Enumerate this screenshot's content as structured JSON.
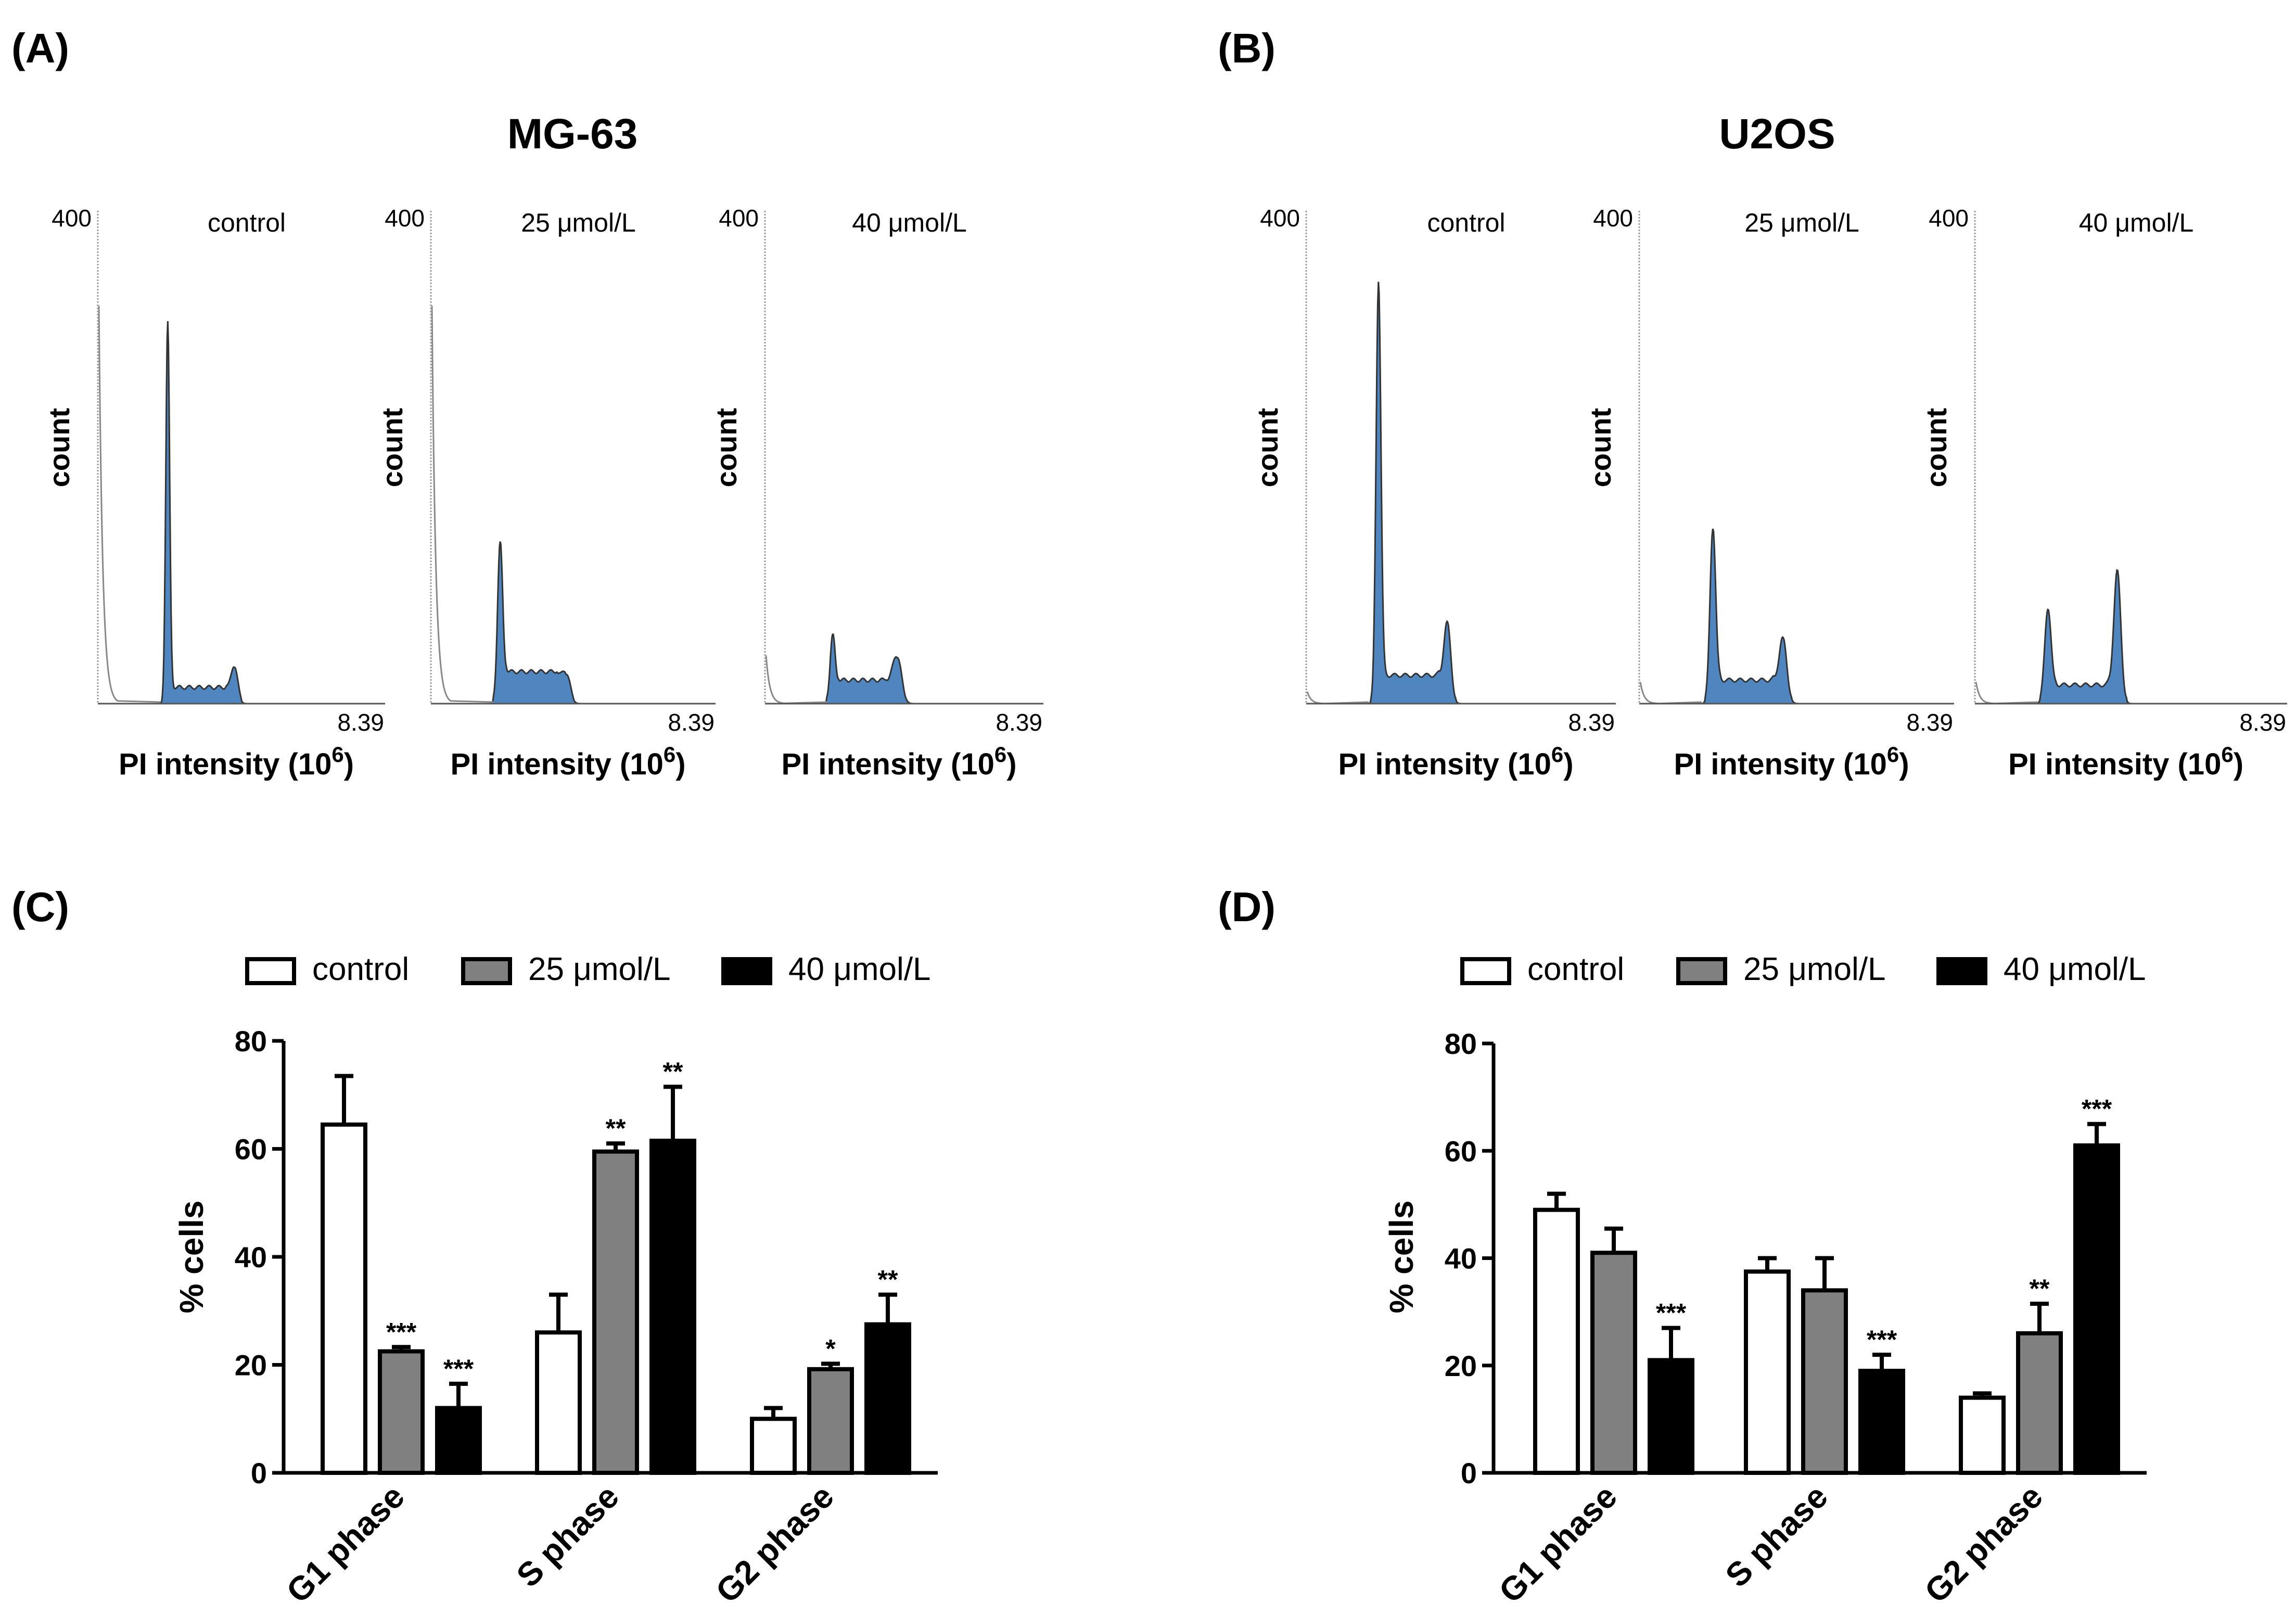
{
  "colors": {
    "histogram_fill": "#4f86c0",
    "histogram_outline": "#333333",
    "debris_line": "#888888",
    "control_fill": "#ffffff",
    "dose25_fill": "#808080",
    "dose40_fill": "#000000",
    "axis": "#000000"
  },
  "panels": {
    "A": {
      "letter": "(A)",
      "title": "MG-63"
    },
    "B": {
      "letter": "(B)",
      "title": "U2OS"
    },
    "C": {
      "letter": "(C)"
    },
    "D": {
      "letter": "(D)"
    }
  },
  "histogram_common": {
    "ymax_label": "400",
    "xmax_label": "8.39",
    "ylabel": "count",
    "xlabel_base": "PI intensity (10",
    "xlabel_exp": "6",
    "xlabel_close": ")"
  },
  "legend": {
    "control": "control",
    "dose25": "25 μmol/L",
    "dose40": "40 μmol/L"
  },
  "chart_data": [
    {
      "type": "area",
      "panel": "A",
      "cell_line": "MG-63",
      "x_range": [
        0,
        8.39
      ],
      "y_range": [
        0,
        400
      ],
      "histograms": [
        {
          "label": "control",
          "g1_pos": 2.2,
          "g1_height": 315,
          "g1_width": 0.06,
          "g2_pos": 4.3,
          "g2_height": 30,
          "g2_width": 0.1,
          "s_plateau": 12,
          "debris_height": 330
        },
        {
          "label": "25 μmol/L",
          "g1_pos": 2.2,
          "g1_height": 132,
          "g1_width": 0.08,
          "g2_pos": 4.3,
          "g2_height": 24,
          "g2_width": 0.12,
          "s_plateau": 25,
          "debris_height": 330
        },
        {
          "label": "40 μmol/L",
          "g1_pos": 2.2,
          "g1_height": 55,
          "g1_width": 0.08,
          "g2_pos": 4.3,
          "g2_height": 38,
          "g2_width": 0.14,
          "s_plateau": 18,
          "debris_height": 40
        }
      ]
    },
    {
      "type": "area",
      "panel": "B",
      "cell_line": "U2OS",
      "x_range": [
        0,
        8.39
      ],
      "y_range": [
        0,
        400
      ],
      "histograms": [
        {
          "label": "control",
          "g1_pos": 2.1,
          "g1_height": 350,
          "g1_width": 0.07,
          "g2_pos": 4.1,
          "g2_height": 65,
          "g2_width": 0.1,
          "s_plateau": 22,
          "debris_height": 10
        },
        {
          "label": "25 μmol/L",
          "g1_pos": 2.1,
          "g1_height": 145,
          "g1_width": 0.08,
          "g2_pos": 4.1,
          "g2_height": 52,
          "g2_width": 0.11,
          "s_plateau": 18,
          "debris_height": 18
        },
        {
          "label": "40 μmol/L",
          "g1_pos": 2.1,
          "g1_height": 78,
          "g1_width": 0.09,
          "g2_pos": 4.1,
          "g2_height": 108,
          "g2_width": 0.1,
          "s_plateau": 14,
          "debris_height": 18
        }
      ]
    },
    {
      "type": "bar",
      "panel": "C",
      "cell_line": "MG-63",
      "ylabel": "% cells",
      "ylim": [
        0,
        80
      ],
      "yticks": [
        "0",
        "20",
        "40",
        "60",
        "80"
      ],
      "categories": [
        "G1 phase",
        "S phase",
        "G2 phase"
      ],
      "series": [
        {
          "name": "control",
          "values": [
            64.5,
            26,
            10
          ],
          "errors": [
            9,
            7,
            2
          ],
          "sig": [
            "",
            "",
            ""
          ]
        },
        {
          "name": "25 μmol/L",
          "values": [
            22.5,
            59.5,
            19.2
          ],
          "errors": [
            0.8,
            1.5,
            1
          ],
          "sig": [
            "***",
            "**",
            "*"
          ]
        },
        {
          "name": "40 μmol/L",
          "values": [
            12,
            61.5,
            27.5
          ],
          "errors": [
            4.5,
            10,
            5.5
          ],
          "sig": [
            "***",
            "**",
            "**"
          ]
        }
      ]
    },
    {
      "type": "bar",
      "panel": "D",
      "cell_line": "U2OS",
      "ylabel": "% cells",
      "ylim": [
        0,
        80
      ],
      "yticks": [
        "0",
        "20",
        "40",
        "60",
        "80"
      ],
      "categories": [
        "G1 phase",
        "S phase",
        "G2 phase"
      ],
      "series": [
        {
          "name": "control",
          "values": [
            49,
            37.5,
            14
          ],
          "errors": [
            3,
            2.5,
            0.8
          ],
          "sig": [
            "",
            "",
            ""
          ]
        },
        {
          "name": "25 μmol/L",
          "values": [
            41,
            34,
            26
          ],
          "errors": [
            4.5,
            6,
            5.5
          ],
          "sig": [
            "",
            "",
            "**"
          ]
        },
        {
          "name": "40 μmol/L",
          "values": [
            21,
            19,
            61
          ],
          "errors": [
            6,
            3,
            4
          ],
          "sig": [
            "***",
            "***",
            "***"
          ]
        }
      ]
    }
  ]
}
